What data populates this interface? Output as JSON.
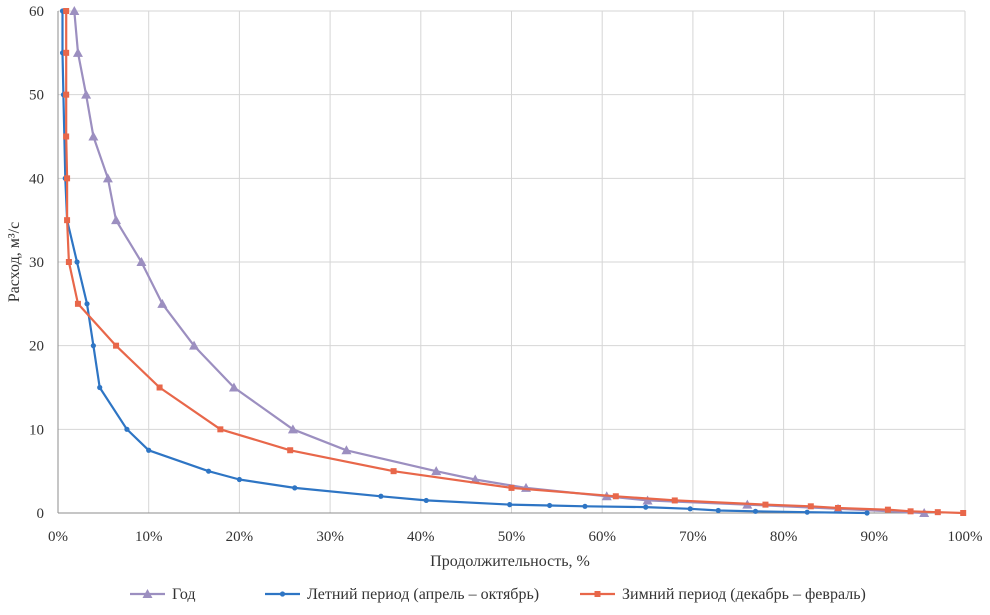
{
  "chart_data": {
    "type": "line",
    "title": "",
    "xlabel": "Продолжительность, %",
    "ylabel": "Расход, м³/с",
    "xlim": [
      0,
      100
    ],
    "ylim": [
      0,
      60
    ],
    "x_ticks": [
      "0%",
      "10%",
      "20%",
      "30%",
      "40%",
      "50%",
      "60%",
      "70%",
      "80%",
      "90%",
      "100%"
    ],
    "y_ticks": [
      "0",
      "10",
      "20",
      "30",
      "40",
      "50",
      "60"
    ],
    "grid": true,
    "legend_position": "bottom",
    "series": [
      {
        "name": "Год",
        "color": "#9c8fc0",
        "marker": "triangle",
        "points": [
          [
            1.8,
            60
          ],
          [
            2.2,
            55
          ],
          [
            3.1,
            50
          ],
          [
            3.9,
            45
          ],
          [
            5.5,
            40
          ],
          [
            6.4,
            35
          ],
          [
            9.2,
            30
          ],
          [
            11.5,
            25
          ],
          [
            15.0,
            20
          ],
          [
            19.4,
            15
          ],
          [
            25.9,
            10
          ],
          [
            31.8,
            7.5
          ],
          [
            41.7,
            5
          ],
          [
            46.0,
            4
          ],
          [
            51.6,
            3
          ],
          [
            60.5,
            2
          ],
          [
            65.0,
            1.5
          ],
          [
            76.0,
            1
          ],
          [
            86.0,
            0.5
          ],
          [
            95.5,
            0
          ]
        ]
      },
      {
        "name": "Летний период (апрель – октябрь)",
        "color": "#2e75c4",
        "marker": "circle",
        "points": [
          [
            0.5,
            60
          ],
          [
            0.5,
            55
          ],
          [
            0.6,
            50
          ],
          [
            0.8,
            40
          ],
          [
            1.0,
            35
          ],
          [
            2.1,
            30
          ],
          [
            3.2,
            25
          ],
          [
            3.9,
            20
          ],
          [
            4.6,
            15
          ],
          [
            7.6,
            10
          ],
          [
            10.0,
            7.5
          ],
          [
            16.6,
            5
          ],
          [
            20.0,
            4
          ],
          [
            26.1,
            3
          ],
          [
            35.6,
            2
          ],
          [
            40.6,
            1.5
          ],
          [
            49.8,
            1
          ],
          [
            54.2,
            0.9
          ],
          [
            58.1,
            0.8
          ],
          [
            64.8,
            0.7
          ],
          [
            69.7,
            0.5
          ],
          [
            72.8,
            0.3
          ],
          [
            76.9,
            0.2
          ],
          [
            82.6,
            0.1
          ],
          [
            89.2,
            0
          ]
        ]
      },
      {
        "name": "Зимний период (декабрь – февраль)",
        "color": "#e8674a",
        "marker": "square",
        "points": [
          [
            0.9,
            60
          ],
          [
            0.9,
            55
          ],
          [
            0.9,
            50
          ],
          [
            0.9,
            45
          ],
          [
            1.0,
            40
          ],
          [
            1.0,
            35
          ],
          [
            1.2,
            30
          ],
          [
            2.2,
            25
          ],
          [
            6.4,
            20
          ],
          [
            11.2,
            15
          ],
          [
            17.9,
            10
          ],
          [
            25.6,
            7.5
          ],
          [
            37.0,
            5
          ],
          [
            50.0,
            3
          ],
          [
            61.5,
            2
          ],
          [
            68.0,
            1.5
          ],
          [
            78.0,
            1
          ],
          [
            83.0,
            0.8
          ],
          [
            86.0,
            0.6
          ],
          [
            91.5,
            0.4
          ],
          [
            94.0,
            0.2
          ],
          [
            97.0,
            0.1
          ],
          [
            99.8,
            0
          ]
        ]
      }
    ]
  }
}
